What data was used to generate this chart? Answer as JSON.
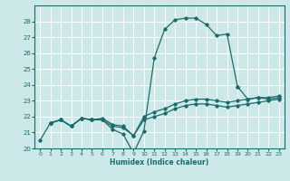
{
  "xlabel": "Humidex (Indice chaleur)",
  "bg_color": "#cce8e8",
  "grid_color": "#ffffff",
  "line_color": "#1a6b6b",
  "xlim": [
    -0.5,
    23.5
  ],
  "ylim": [
    20,
    29
  ],
  "yticks": [
    20,
    21,
    22,
    23,
    24,
    25,
    26,
    27,
    28
  ],
  "xticks": [
    0,
    1,
    2,
    3,
    4,
    5,
    6,
    7,
    8,
    9,
    10,
    11,
    12,
    13,
    14,
    15,
    16,
    17,
    18,
    19,
    20,
    21,
    22,
    23
  ],
  "curves": [
    {
      "x": [
        0,
        1,
        2,
        3,
        4,
        5,
        6,
        7,
        8,
        9,
        10,
        11,
        12,
        13,
        14,
        15,
        16,
        17,
        18,
        19
      ],
      "y": [
        20.5,
        21.6,
        21.8,
        21.4,
        21.9,
        21.8,
        21.8,
        21.2,
        20.9,
        19.7,
        21.1,
        25.7,
        27.5,
        28.1,
        28.2,
        28.2,
        27.8,
        27.1,
        27.2,
        23.9
      ]
    },
    {
      "x": [
        19,
        20,
        21,
        22,
        23
      ],
      "y": [
        23.9,
        23.1,
        23.2,
        23.1,
        23.2
      ]
    },
    {
      "x": [
        1,
        2,
        3,
        4,
        5,
        6,
        7,
        8,
        9,
        10,
        11,
        12,
        13,
        14,
        15,
        16,
        17,
        18,
        19,
        20,
        21,
        22,
        23
      ],
      "y": [
        21.6,
        21.8,
        21.4,
        21.9,
        21.8,
        21.8,
        21.4,
        21.3,
        20.8,
        22.0,
        22.3,
        22.5,
        22.8,
        23.0,
        23.1,
        23.1,
        23.0,
        22.9,
        23.0,
        23.1,
        23.2,
        23.2,
        23.3
      ]
    },
    {
      "x": [
        1,
        2,
        3,
        4,
        5,
        6,
        7,
        8,
        9,
        10,
        11,
        12,
        13,
        14,
        15,
        16,
        17,
        18,
        19,
        20,
        21,
        22,
        23
      ],
      "y": [
        21.6,
        21.8,
        21.4,
        21.9,
        21.8,
        21.9,
        21.5,
        21.4,
        20.8,
        21.8,
        22.0,
        22.2,
        22.5,
        22.7,
        22.8,
        22.8,
        22.7,
        22.6,
        22.7,
        22.8,
        22.9,
        23.0,
        23.1
      ]
    }
  ]
}
